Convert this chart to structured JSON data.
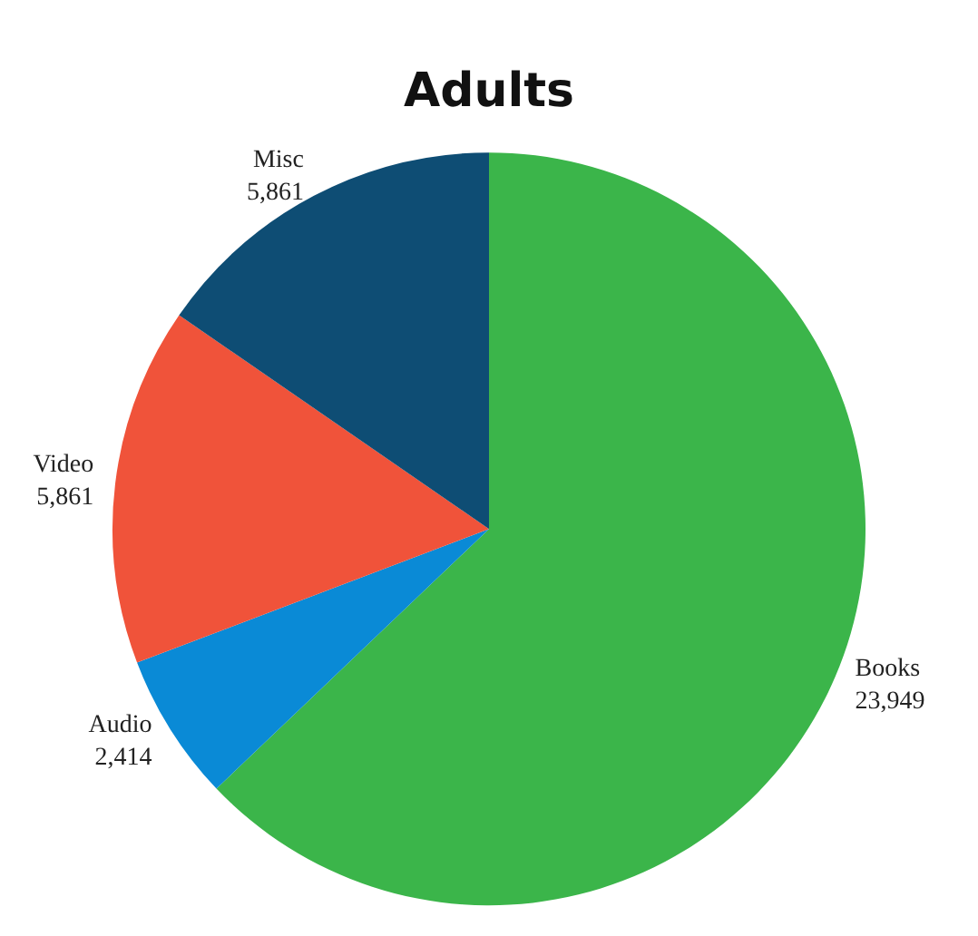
{
  "chart_data": {
    "type": "pie",
    "title": "Adults",
    "categories": [
      "Books",
      "Audio",
      "Video",
      "Misc"
    ],
    "values": [
      23949,
      2414,
      5861,
      5861
    ],
    "colors": [
      "#3bb54a",
      "#0a8ad6",
      "#f0533a",
      "#0e4d74"
    ],
    "value_labels": [
      "23,949",
      "2,414",
      "5,861",
      "5,861"
    ],
    "legend": false
  }
}
